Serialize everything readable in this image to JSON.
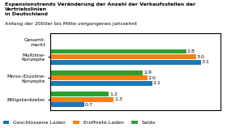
{
  "chart_data": {
    "type": "bar",
    "orientation": "horizontal",
    "title": "Expansionstrends Veränderung der Anzahl der Verkaufsstellen der Vertriebslinien\nin Deutschland",
    "subtitle": "Anfang der 2000er bis Mitte vergangenes Jahrzehnt",
    "annotation": "Gesamt-\nmarkt",
    "categories": [
      "Multiline-\nKonzepte",
      "Mono-/Duoline-\nKonzepte",
      "Billigstanbieter"
    ],
    "series": [
      {
        "name": "Geschlossene Laden",
        "values": [
          3.1,
          2.1,
          0.7
        ]
      },
      {
        "name": "Eroffnete Laden",
        "values": [
          3.0,
          2.0,
          1.3
        ]
      },
      {
        "name": "Saldo",
        "values": [
          2.8,
          1.9,
          1.2
        ]
      }
    ],
    "xlim": [
      0,
      3.5
    ],
    "data_labels": true,
    "tick_labels": "y",
    "legend": "lower left"
  }
}
